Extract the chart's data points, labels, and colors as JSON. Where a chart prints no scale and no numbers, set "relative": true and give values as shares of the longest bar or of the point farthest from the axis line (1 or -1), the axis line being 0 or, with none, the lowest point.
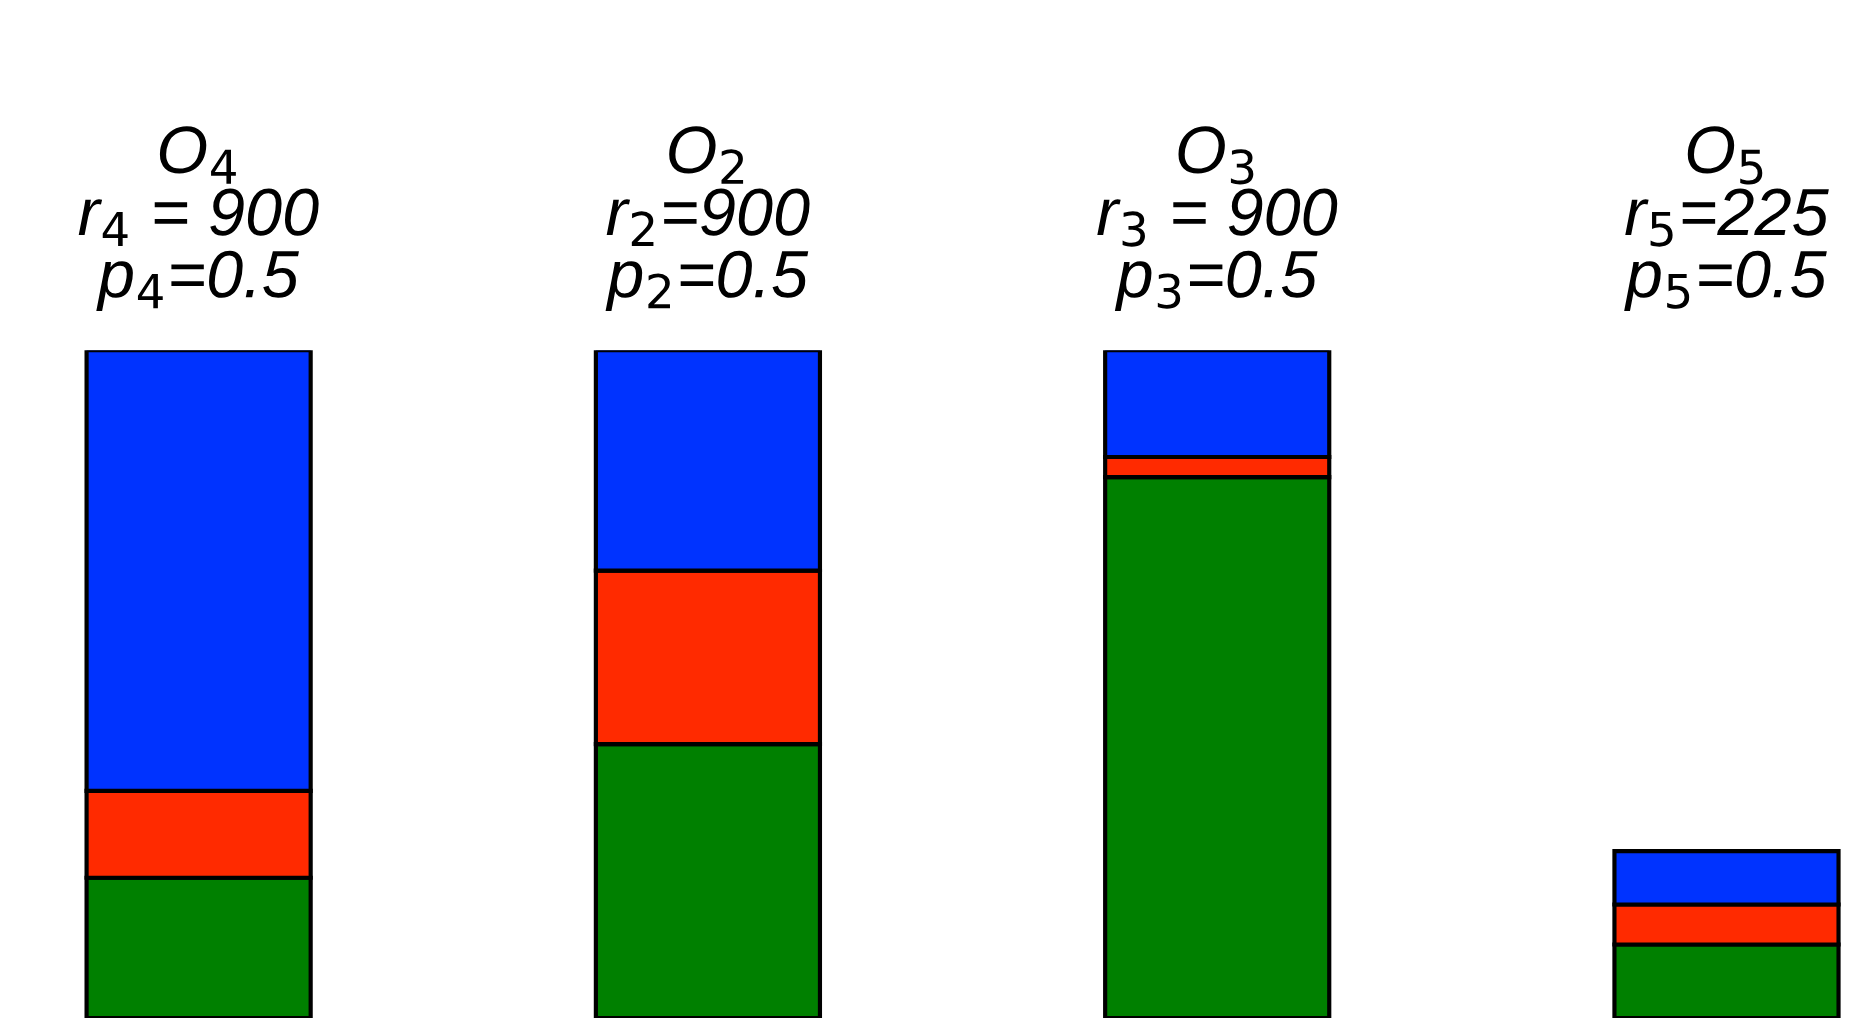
{
  "chart_data": {
    "type": "bar",
    "stacked": true,
    "relative": true,
    "categories": [
      "O$_{4}$\nr$_{4}$ = 900\np$_{4}$=0.5",
      "O$_{2}$\nr$_{2}$=900\np$_{2}$=0.5",
      "O$_{3}$\nr$_{3}$ = 900\np$_{3}$=0.5",
      "O$_{5}$\nr$_{5}$=225\np$_{5}$=0.5"
    ],
    "series": [
      {
        "color": "#008000",
        "values": [
          0.21,
          0.41,
          0.81,
          0.11
        ]
      },
      {
        "color": "#ff2a00",
        "values": [
          0.13,
          0.26,
          0.03,
          0.06
        ]
      },
      {
        "color": "#0033ff",
        "values": [
          0.66,
          0.33,
          0.16,
          0.08
        ]
      }
    ]
  }
}
